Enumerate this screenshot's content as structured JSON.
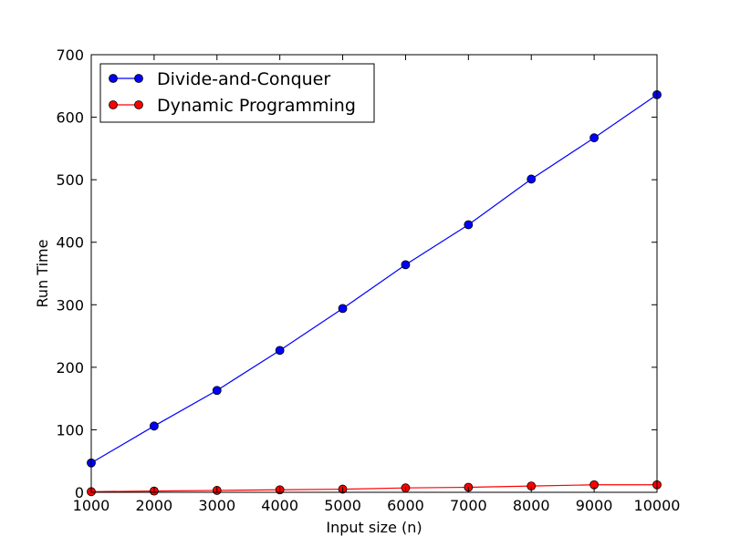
{
  "chart_data": {
    "type": "line",
    "title": "",
    "xlabel": "Input size (n)",
    "ylabel": "Run Time",
    "xlim": [
      1000,
      10000
    ],
    "ylim": [
      0,
      700
    ],
    "x": [
      1000,
      2000,
      3000,
      4000,
      5000,
      6000,
      7000,
      8000,
      9000,
      10000
    ],
    "xticks": [
      "1000",
      "2000",
      "3000",
      "4000",
      "5000",
      "6000",
      "7000",
      "8000",
      "9000",
      "10000"
    ],
    "yticks": [
      "0",
      "100",
      "200",
      "300",
      "400",
      "500",
      "600",
      "700"
    ],
    "grid": false,
    "legend_position": "top-left",
    "series": [
      {
        "name": "Divide-and-Conquer",
        "color": "#0000ff",
        "values": [
          47,
          106,
          163,
          227,
          294,
          364,
          428,
          501,
          567,
          636
        ]
      },
      {
        "name": "Dynamic Programming",
        "color": "#ff0000",
        "values": [
          1,
          2,
          3,
          4,
          5,
          7,
          8,
          10,
          12,
          12
        ]
      }
    ]
  }
}
